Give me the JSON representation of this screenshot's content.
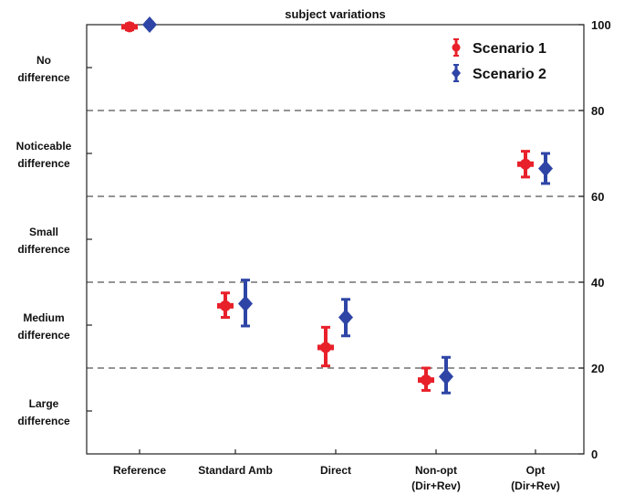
{
  "chart_data": {
    "type": "scatter",
    "title": "subject variations",
    "categories": [
      "Reference",
      "Standard Amb",
      "Direct",
      "Non-opt\n(Dir+Rev)",
      "Opt\n(Dir+Rev)"
    ],
    "ylim": [
      0,
      100
    ],
    "right_ticks": [
      0,
      20,
      40,
      60,
      80,
      100
    ],
    "dashed_lines": [
      20,
      40,
      60,
      80
    ],
    "left_labels": [
      {
        "lines": [
          "No",
          "difference"
        ],
        "center": 90
      },
      {
        "lines": [
          "Noticeable",
          "difference"
        ],
        "center": 70
      },
      {
        "lines": [
          "Small",
          "difference"
        ],
        "center": 50
      },
      {
        "lines": [
          "Medium",
          "difference"
        ],
        "center": 30
      },
      {
        "lines": [
          "Large",
          "difference"
        ],
        "center": 10
      }
    ],
    "left_ticks": [
      10,
      30,
      50,
      70,
      90
    ],
    "legend_position": "top-right",
    "series": [
      {
        "name": "Scenario 1",
        "color": "#e8202a",
        "marker": "circle",
        "values": [
          99.5,
          34.5,
          24.8,
          17.2,
          67.5
        ],
        "err_low": [
          98.8,
          31.8,
          20.5,
          14.8,
          64.5
        ],
        "err_high": [
          100.2,
          37.5,
          29.5,
          20.0,
          70.5
        ]
      },
      {
        "name": "Scenario 2",
        "color": "#2e45a6",
        "marker": "diamond",
        "values": [
          100.0,
          35.0,
          31.8,
          18.0,
          66.5
        ],
        "err_low": [
          99.5,
          29.8,
          27.5,
          14.2,
          63.0
        ],
        "err_high": [
          100.5,
          40.5,
          36.0,
          22.5,
          70.0
        ]
      }
    ]
  }
}
